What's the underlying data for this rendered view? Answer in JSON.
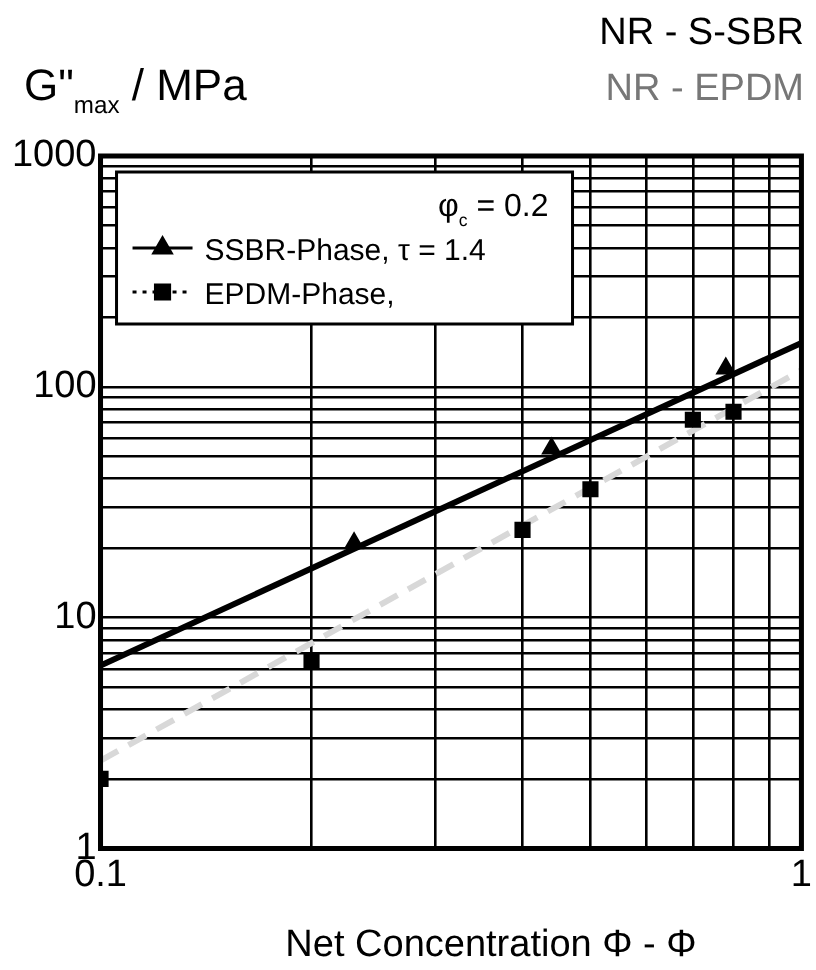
{
  "chart_data": {
    "type": "scatter",
    "title": "NR - S-SBR",
    "subtitle": "NR - EPDM",
    "ylabel": "G\"$_{max}$ / MPa",
    "xlabel": "Net Concentration Φ - Φ",
    "log": "xy",
    "grid": true,
    "legend": "top left",
    "annotations": [
      "φ$_{c}$ = 0.2"
    ],
    "xlim": [
      0.1,
      1
    ],
    "ylim": [
      1,
      1000
    ],
    "xticks": [
      0.1,
      {
        "value": 0.2,
        "label": null
      },
      {
        "value": 0.3,
        "label": null
      },
      {
        "value": 0.4,
        "label": null
      },
      {
        "value": 0.5,
        "label": null
      },
      {
        "value": 0.6,
        "label": null
      },
      {
        "value": 0.7,
        "label": null
      },
      {
        "value": 0.8,
        "label": null
      },
      {
        "value": 0.9,
        "label": null
      },
      1
    ],
    "yticks": [
      1,
      {
        "value": 2,
        "label": null
      },
      {
        "value": 3,
        "label": null
      },
      {
        "value": 4,
        "label": null
      },
      {
        "value": 5,
        "label": null
      },
      {
        "value": 6,
        "label": null
      },
      {
        "value": 7,
        "label": null
      },
      {
        "value": 8,
        "label": null
      },
      {
        "value": 9,
        "label": null
      },
      10,
      {
        "value": 20,
        "label": null
      },
      {
        "value": 30,
        "label": null
      },
      {
        "value": 40,
        "label": null
      },
      {
        "value": 50,
        "label": null
      },
      {
        "value": 60,
        "label": null
      },
      {
        "value": 70,
        "label": null
      },
      {
        "value": 80,
        "label": null
      },
      {
        "value": 90,
        "label": null
      },
      100,
      {
        "value": 200,
        "label": null
      },
      {
        "value": 300,
        "label": null
      },
      {
        "value": 400,
        "label": null
      },
      {
        "value": 500,
        "label": null
      },
      {
        "value": 600,
        "label": null
      },
      {
        "value": 700,
        "label": null
      },
      {
        "value": 800,
        "label": null
      },
      {
        "value": 900,
        "label": null
      },
      1000
    ],
    "series": [
      {
        "name": "SSBR-Phase, τ = 1.4",
        "marker": "triangle",
        "color": "#000000",
        "x": [
          0.23,
          0.44,
          0.78
        ],
        "values": [
          21,
          54,
          120
        ]
      },
      {
        "name": "EPDM-Phase,",
        "marker": "square",
        "color": "#000000",
        "x": [
          0.1,
          0.2,
          0.4,
          0.5,
          0.7,
          0.8
        ],
        "values": [
          2,
          6.5,
          24,
          36,
          72,
          78
        ]
      },
      {
        "type": "line",
        "line_style": "solid",
        "color": "#000000",
        "x": [
          0.1,
          1
        ],
        "values": [
          6.2,
          155
        ]
      },
      {
        "type": "line",
        "line_style": "dashed",
        "color": "#d8d8d8",
        "x": [
          0.1,
          1
        ],
        "values": [
          2.4,
          118
        ]
      }
    ]
  }
}
